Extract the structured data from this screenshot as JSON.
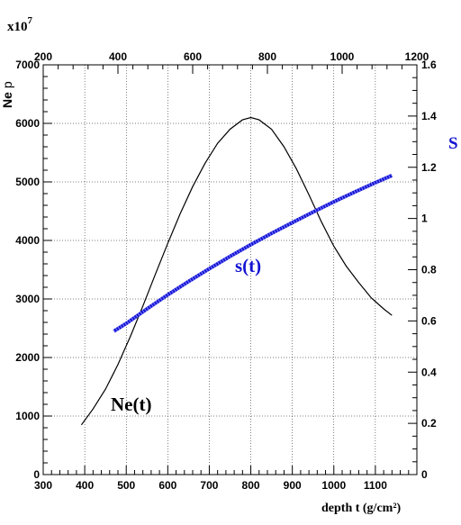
{
  "chart_data": {
    "type": "line",
    "multiplier_label": "x10",
    "multiplier_exponent": "7",
    "x_bottom": {
      "label": "depth t (g/cm²)",
      "range": [
        300,
        1200
      ],
      "ticks": [
        300,
        400,
        500,
        600,
        700,
        800,
        900,
        1000,
        1100
      ]
    },
    "x_top": {
      "range": [
        200,
        1200
      ],
      "ticks": [
        200,
        400,
        600,
        800,
        1000,
        1200
      ]
    },
    "y_left": {
      "label": "Ne",
      "label_suffix": "p",
      "range": [
        0,
        7000
      ],
      "ticks": [
        0,
        1000,
        2000,
        3000,
        4000,
        5000,
        6000,
        7000
      ]
    },
    "y_right": {
      "label": "S",
      "range": [
        0,
        1.6
      ],
      "ticks": [
        "0",
        "0.2",
        "0.4",
        "0.6",
        "0.8",
        "1",
        "1.2",
        "1.4",
        "1.6"
      ]
    },
    "grid": true,
    "series": [
      {
        "name": "Ne(t)",
        "axis": "left",
        "color": "#000000",
        "x": [
          392,
          420,
          450,
          480,
          510,
          540,
          570,
          600,
          630,
          660,
          690,
          720,
          750,
          780,
          800,
          820,
          850,
          880,
          910,
          940,
          970,
          1000,
          1030,
          1060,
          1090,
          1120,
          1140
        ],
        "y": [
          850,
          1120,
          1460,
          1880,
          2360,
          2880,
          3420,
          3950,
          4460,
          4920,
          5320,
          5660,
          5900,
          6060,
          6100,
          6060,
          5900,
          5600,
          5220,
          4780,
          4320,
          3900,
          3560,
          3280,
          3020,
          2830,
          2720
        ]
      },
      {
        "name": "s(t)",
        "axis": "right",
        "color": "#1414d2",
        "x": [
          470,
          500,
          550,
          600,
          650,
          700,
          750,
          800,
          850,
          900,
          950,
          1000,
          1050,
          1100,
          1140
        ],
        "y": [
          0.56,
          0.59,
          0.647,
          0.702,
          0.754,
          0.804,
          0.852,
          0.898,
          0.942,
          0.984,
          1.025,
          1.065,
          1.103,
          1.14,
          1.168
        ]
      }
    ]
  }
}
